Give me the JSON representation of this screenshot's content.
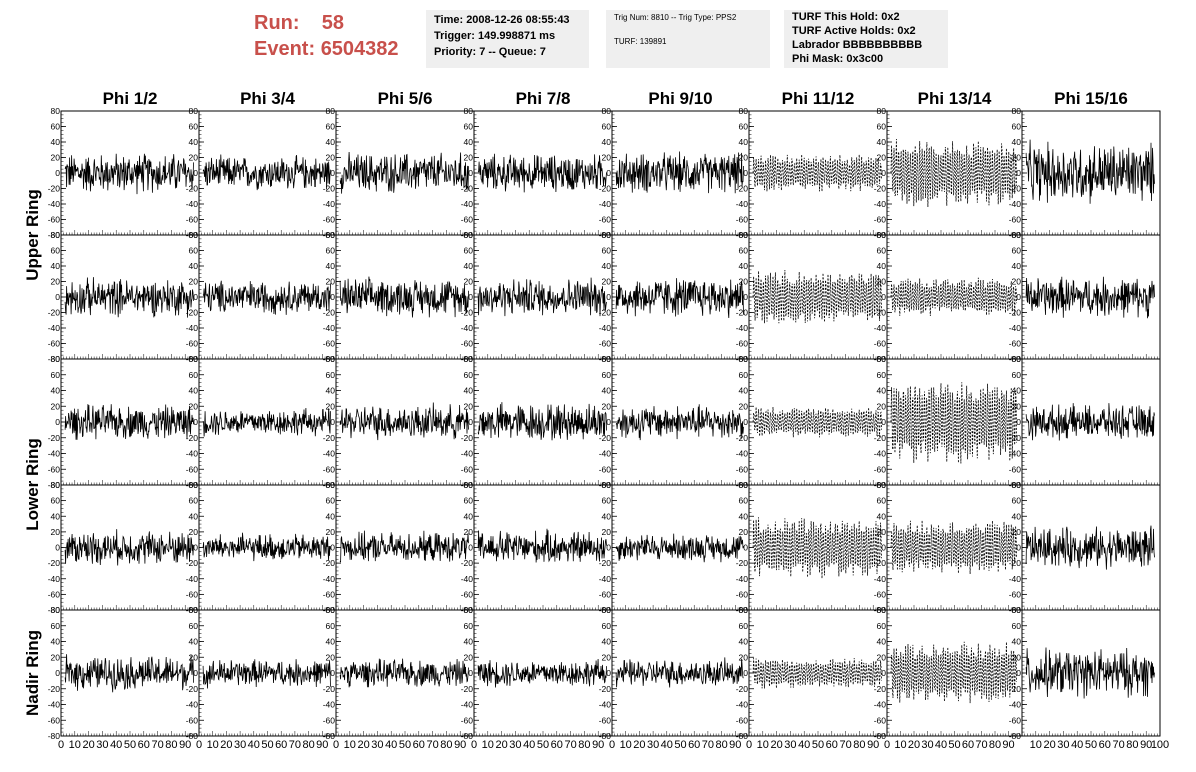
{
  "header": {
    "run_label": "Run:",
    "run_value": "58",
    "event_label": "Event:",
    "event_value": "6504382"
  },
  "info_time": {
    "time": "Time: 2008-12-26 08:55:43",
    "trigger": "Trigger: 149.998871 ms",
    "priority": "Priority: 7 -- Queue: 7"
  },
  "info_trig": {
    "trig": "Trig Num: 8810 -- Trig Type: PPS2",
    "turf": "TURF: 139891"
  },
  "info_turf": {
    "this_hold": "TURF This Hold: 0x2",
    "active_holds": "TURF Active Holds: 0x2",
    "labrador": "Labrador BBBBBBBBBB",
    "phi_mask": "Phi Mask: 0x3c00"
  },
  "chart_data": {
    "type": "line",
    "columns": [
      "Phi 1/2",
      "Phi 3/4",
      "Phi 5/6",
      "Phi 7/8",
      "Phi 9/10",
      "Phi 11/12",
      "Phi 13/14",
      "Phi 15/16"
    ],
    "ring_labels": [
      "Upper Ring",
      "Lower Ring",
      "Nadir Ring"
    ],
    "rows": 5,
    "xlim": [
      0,
      100
    ],
    "ylim": [
      -80,
      80
    ],
    "x_ticks": [
      0,
      10,
      20,
      30,
      40,
      50,
      60,
      70,
      80,
      90
    ],
    "x_ticks_last": [
      10,
      20,
      30,
      40,
      50,
      60,
      70,
      80,
      90,
      100
    ],
    "y_ticks": [
      80,
      60,
      40,
      20,
      0,
      -20,
      -40,
      -60,
      -80
    ],
    "grid": false,
    "dashed_columns": [
      5,
      6
    ],
    "peak_amplitude": [
      [
        30,
        25,
        30,
        28,
        30,
        25,
        45,
        45
      ],
      [
        28,
        25,
        28,
        28,
        30,
        35,
        25,
        30
      ],
      [
        25,
        20,
        25,
        28,
        25,
        20,
        55,
        25
      ],
      [
        25,
        20,
        22,
        25,
        20,
        40,
        35,
        30
      ],
      [
        25,
        20,
        20,
        20,
        20,
        20,
        40,
        35
      ]
    ]
  }
}
